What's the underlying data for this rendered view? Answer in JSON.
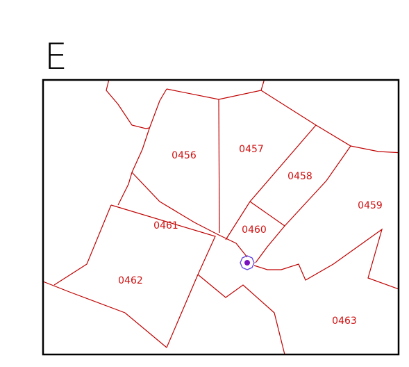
{
  "title": "E",
  "parcels": [
    {
      "label": "0456"
    },
    {
      "label": "0457"
    },
    {
      "label": "0458"
    },
    {
      "label": "0459"
    },
    {
      "label": "0460"
    },
    {
      "label": "0461"
    },
    {
      "label": "0462"
    },
    {
      "label": "0463"
    }
  ]
}
